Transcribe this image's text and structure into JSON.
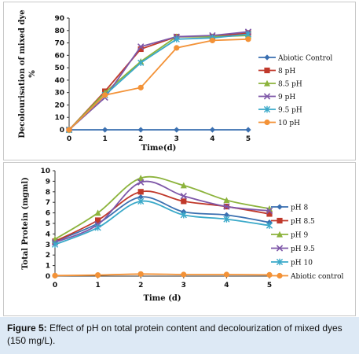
{
  "chart_data": [
    {
      "type": "line",
      "ylabel": "Decolourisation of mixed dye %",
      "xlabel": "Time(d)",
      "x": [
        0,
        1,
        2,
        3,
        4,
        5
      ],
      "xticks": [
        "0",
        "1",
        "2",
        "3",
        "4",
        "5"
      ],
      "yticks": [
        "0",
        "10",
        "20",
        "30",
        "40",
        "50",
        "60",
        "70",
        "80",
        "90"
      ],
      "ylim": [
        0,
        90
      ],
      "legend": "right",
      "series": [
        {
          "name": "Abiotic Control",
          "color": "#3a6fb0",
          "marker": "diamond",
          "values": [
            0,
            0,
            0,
            0,
            0,
            0
          ]
        },
        {
          "name": "8 pH",
          "color": "#c0392b",
          "marker": "square",
          "values": [
            0,
            31,
            65,
            75,
            75,
            78
          ]
        },
        {
          "name": "8.5 pH",
          "color": "#8cb33c",
          "marker": "triangle",
          "values": [
            0,
            30,
            55,
            75,
            75,
            76
          ]
        },
        {
          "name": "9 pH",
          "color": "#7e57a8",
          "marker": "x",
          "values": [
            0,
            26,
            67,
            75,
            76,
            79
          ]
        },
        {
          "name": "9.5 pH",
          "color": "#3aa9c9",
          "marker": "star",
          "values": [
            0,
            28,
            54,
            73,
            74,
            77
          ]
        },
        {
          "name": "10 pH",
          "color": "#f39237",
          "marker": "circle",
          "values": [
            0,
            28,
            34,
            66,
            72,
            73
          ]
        }
      ]
    },
    {
      "type": "line",
      "ylabel": "Total Protein (mgml)",
      "xlabel": "Time (d)",
      "x": [
        0,
        1,
        2,
        3,
        4,
        5
      ],
      "xticks": [
        "0",
        "1",
        "2",
        "3",
        "4",
        "5"
      ],
      "yticks": [
        "0",
        "1",
        "2",
        "3",
        "4",
        "5",
        "6",
        "7",
        "8",
        "9",
        "10"
      ],
      "ylim": [
        0,
        10
      ],
      "legend": "right",
      "series": [
        {
          "name": "pH 8",
          "color": "#3a6fb0",
          "marker": "diamond",
          "values": [
            3.3,
            5.0,
            7.5,
            6.1,
            5.8,
            5.1
          ]
        },
        {
          "name": "pH 8.5",
          "color": "#c0392b",
          "marker": "square",
          "values": [
            3.3,
            5.3,
            8.0,
            7.1,
            6.6,
            5.9
          ]
        },
        {
          "name": "pH 9",
          "color": "#8cb33c",
          "marker": "triangle",
          "values": [
            3.5,
            6.0,
            9.3,
            8.6,
            7.2,
            6.4
          ]
        },
        {
          "name": "pH 9.5",
          "color": "#7e57a8",
          "marker": "x",
          "values": [
            3.2,
            4.9,
            8.9,
            7.6,
            6.6,
            6.2
          ]
        },
        {
          "name": "pH 10",
          "color": "#3aa9c9",
          "marker": "star",
          "values": [
            3.0,
            4.6,
            7.1,
            5.8,
            5.4,
            4.8
          ]
        },
        {
          "name": "Abiotic control",
          "color": "#f39237",
          "marker": "circle",
          "values": [
            0.05,
            0.1,
            0.2,
            0.15,
            0.15,
            0.12
          ]
        }
      ]
    }
  ],
  "caption": {
    "label": "Figure 5:",
    "text": " Effect of pH on total protein content and decolourization of mixed dyes (150 mg/L)."
  }
}
